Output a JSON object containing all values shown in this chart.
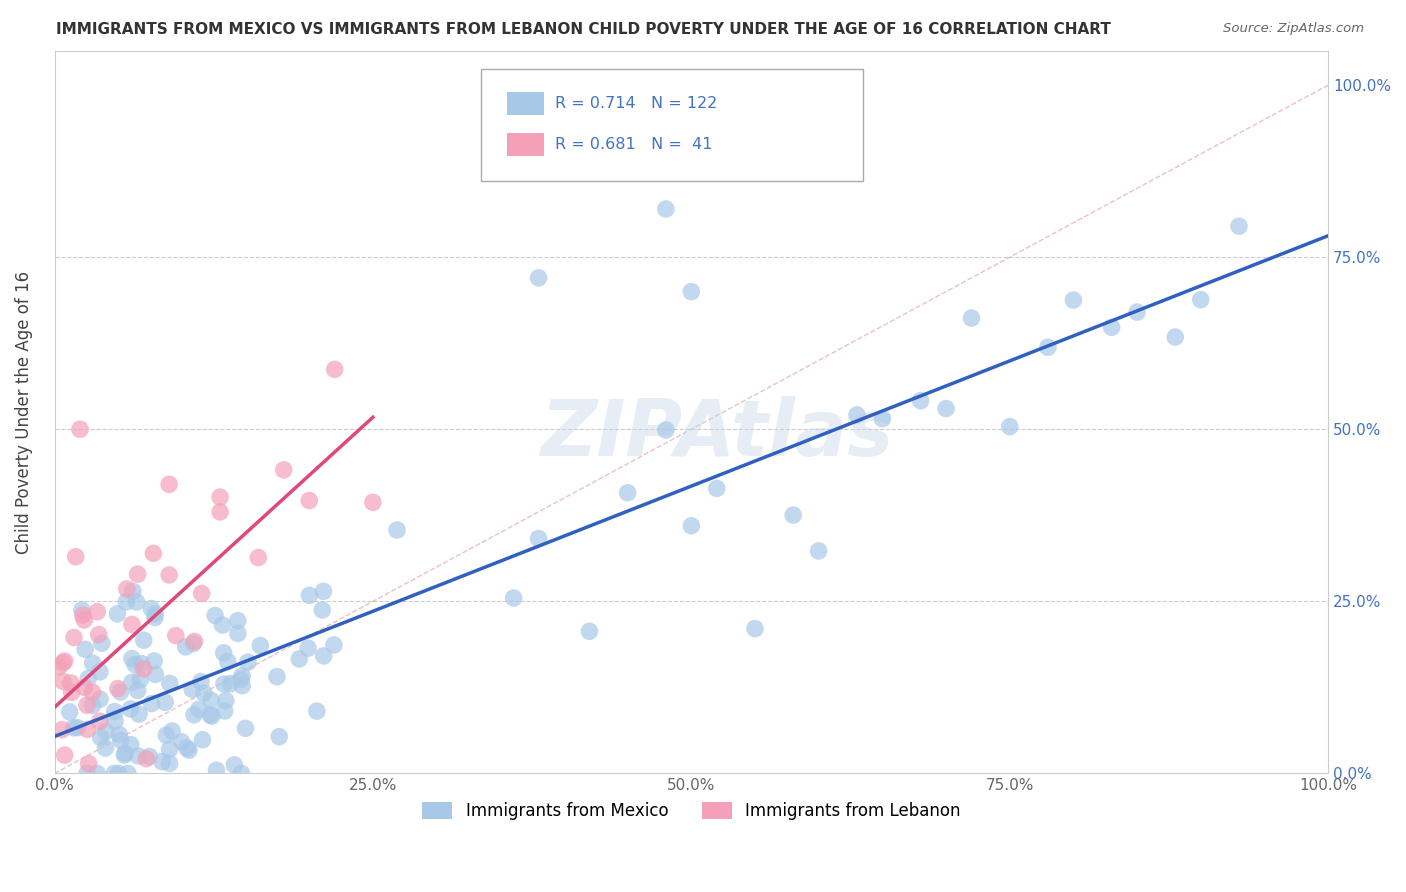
{
  "title": "IMMIGRANTS FROM MEXICO VS IMMIGRANTS FROM LEBANON CHILD POVERTY UNDER THE AGE OF 16 CORRELATION CHART",
  "source": "Source: ZipAtlas.com",
  "ylabel": "Child Poverty Under the Age of 16",
  "xlim": [
    0.0,
    1.0
  ],
  "ylim": [
    0.0,
    1.0
  ],
  "xtick_labels": [
    "0.0%",
    "25.0%",
    "50.0%",
    "75.0%",
    "100.0%"
  ],
  "xtick_values": [
    0.0,
    0.25,
    0.5,
    0.75,
    1.0
  ],
  "right_ytick_labels": [
    "0.0%",
    "25.0%",
    "50.0%",
    "75.0%",
    "100.0%"
  ],
  "right_ytick_values": [
    0.0,
    0.25,
    0.5,
    0.75,
    1.0
  ],
  "mexico_R": 0.714,
  "mexico_N": 122,
  "lebanon_R": 0.681,
  "lebanon_N": 41,
  "mexico_color": "#a8c8e8",
  "lebanon_color": "#f4a0b8",
  "mexico_line_color": "#3060c0",
  "lebanon_line_color": "#e04878",
  "diagonal_color": "#e8b0b8",
  "watermark": "ZIPAtlas",
  "legend_label_mexico": "Immigrants from Mexico",
  "legend_label_lebanon": "Immigrants from Lebanon",
  "label_color": "#4472c4",
  "title_color": "#333333",
  "source_color": "#666666",
  "grid_color": "#cccccc",
  "tick_color": "#666666"
}
